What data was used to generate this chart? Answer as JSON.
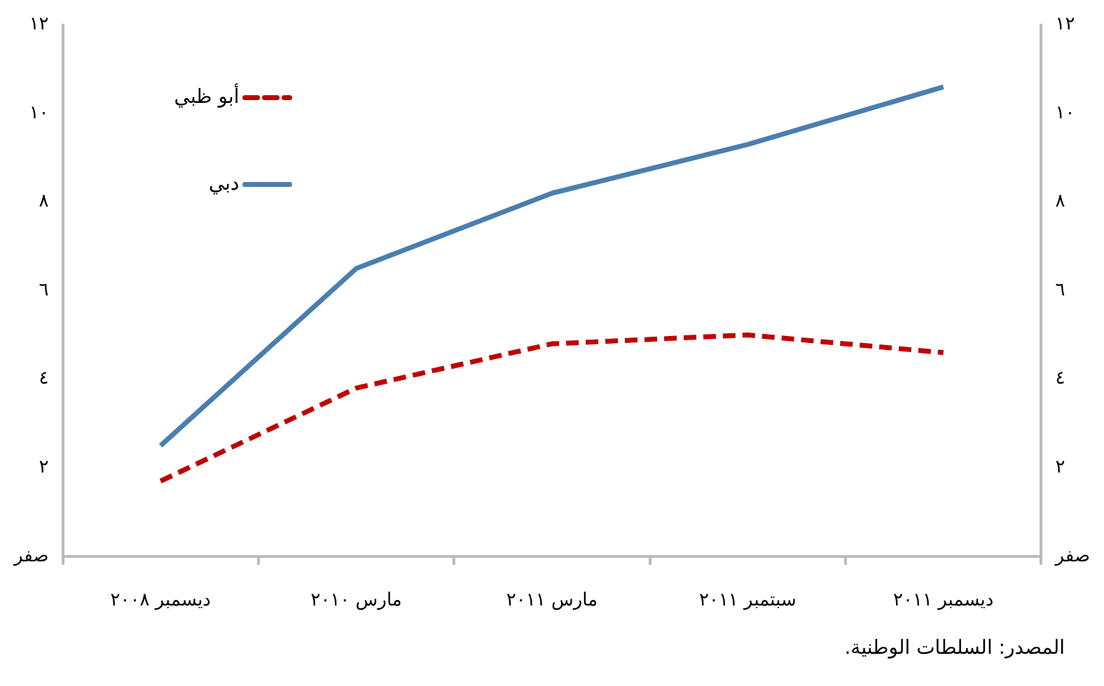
{
  "chart_data": {
    "type": "line",
    "categories": [
      "ديسمبر ٢٠٠٨",
      "مارس ٢٠١٠",
      "مارس ٢٠١١",
      "سبتمبر ٢٠١١",
      "ديسمبر ٢٠١١"
    ],
    "series": [
      {
        "name": "أبو ظبي",
        "color": "#c00000",
        "values": [
          1.7,
          3.8,
          4.8,
          5.0,
          4.6
        ],
        "line_style": "dashed"
      },
      {
        "name": "دبي",
        "color": "#4a7eb0",
        "values": [
          2.5,
          6.5,
          8.2,
          9.3,
          10.6
        ],
        "line_style": "solid"
      }
    ],
    "ylim": [
      0,
      12
    ],
    "yticks": [
      {
        "value": 0,
        "label": "صفر"
      },
      {
        "value": 2,
        "label": "٢"
      },
      {
        "value": 4,
        "label": "٤"
      },
      {
        "value": 6,
        "label": "٦"
      },
      {
        "value": 8,
        "label": "٨"
      },
      {
        "value": 10,
        "label": "١٠"
      },
      {
        "value": 12,
        "label": "١٢"
      }
    ],
    "y2lim": [
      0,
      12
    ],
    "y2ticks": [
      {
        "value": 0,
        "label": "صفر"
      },
      {
        "value": 2,
        "label": "٢"
      },
      {
        "value": 4,
        "label": "٤"
      },
      {
        "value": 6,
        "label": "٦"
      },
      {
        "value": 8,
        "label": "٨"
      },
      {
        "value": 10,
        "label": "١٠"
      },
      {
        "value": 12,
        "label": "١٢"
      }
    ],
    "grid": false,
    "legend": "top left",
    "marker": "none",
    "annotations": [
      "المصدر: السلطات الوطنية."
    ]
  }
}
